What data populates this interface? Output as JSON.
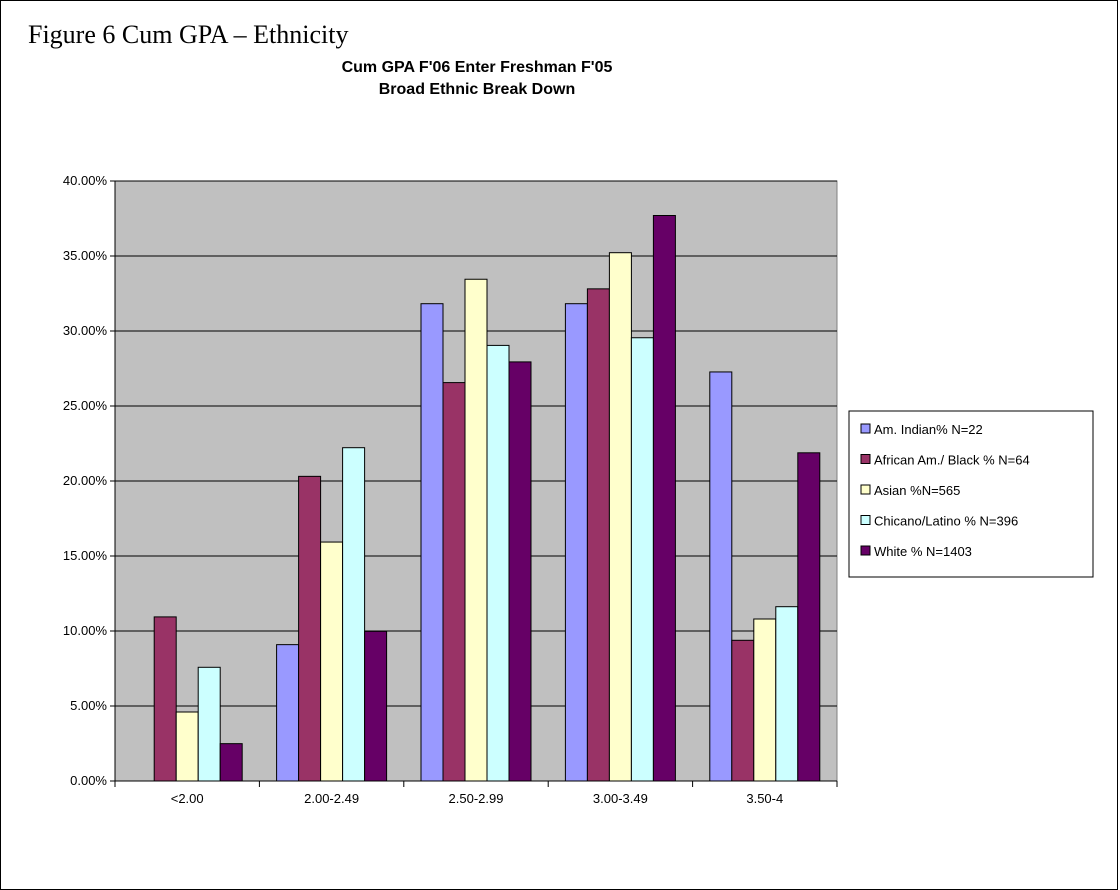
{
  "figure_caption": "Figure 6 Cum GPA – Ethnicity",
  "chart_data": {
    "type": "bar",
    "title": "Cum GPA F'06 Enter Freshman F'05",
    "subtitle": "Broad Ethnic Break Down",
    "xlabel": "",
    "ylabel": "",
    "categories": [
      "<2.00",
      "2.00-2.49",
      "2.50-2.99",
      "3.00-3.49",
      "3.50-4"
    ],
    "ylim": [
      0,
      40
    ],
    "yticks": [
      0,
      5,
      10,
      15,
      20,
      25,
      30,
      35,
      40
    ],
    "ytick_labels": [
      "0.00%",
      "5.00%",
      "10.00%",
      "15.00%",
      "20.00%",
      "25.00%",
      "30.00%",
      "35.00%",
      "40.00%"
    ],
    "grid": true,
    "plot_background": "#c0c0c0",
    "legend_position": "right",
    "series": [
      {
        "name": "Am. Indian% N=22",
        "color": "#9999ff",
        "values": [
          0.0,
          9.09,
          31.82,
          31.82,
          27.27
        ]
      },
      {
        "name": "African Am./ Black % N=64",
        "color": "#993366",
        "values": [
          10.94,
          20.31,
          26.56,
          32.81,
          9.38
        ]
      },
      {
        "name": "Asian %N=565",
        "color": "#ffffcc",
        "values": [
          4.6,
          15.93,
          33.45,
          35.22,
          10.8
        ]
      },
      {
        "name": "Chicano/Latino % N=396",
        "color": "#ccffff",
        "values": [
          7.58,
          22.22,
          29.04,
          29.55,
          11.62
        ]
      },
      {
        "name": "White % N=1403",
        "color": "#660066",
        "values": [
          2.49,
          9.98,
          27.94,
          37.7,
          21.88
        ]
      }
    ]
  }
}
